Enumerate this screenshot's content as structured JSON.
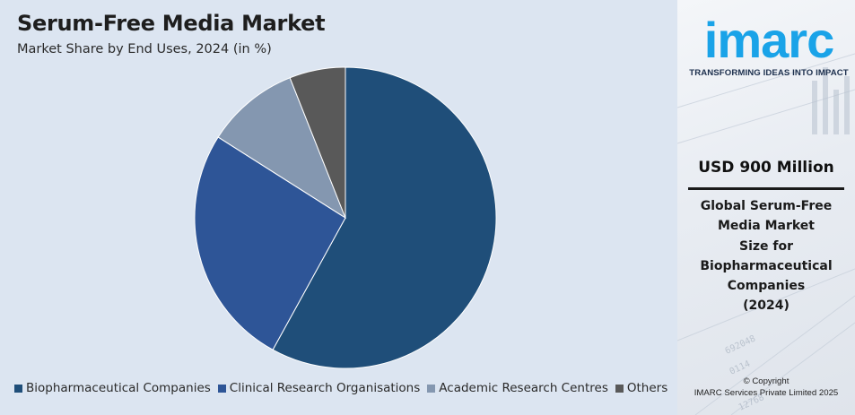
{
  "header": {
    "title": "Serum-Free Media Market",
    "subtitle": "Market Share by End Uses, 2024 (in %)"
  },
  "chart_data": {
    "type": "pie",
    "title": "Serum-Free Media Market",
    "subtitle": "Market Share by End Uses, 2024 (in %)",
    "categories": [
      "Biopharmaceutical Companies",
      "Clinical Research Organisations",
      "Academic Research Centres",
      "Others"
    ],
    "values": [
      58,
      26,
      10,
      6
    ],
    "unit": "%",
    "colors": [
      "#1f4e79",
      "#2e5597",
      "#8497b0",
      "#595959"
    ],
    "start_angle_deg": 0,
    "direction": "clockwise",
    "legend_position": "bottom"
  },
  "legend": {
    "items": [
      {
        "label": "Biopharmaceutical Companies",
        "color": "#1f4e79"
      },
      {
        "label": "Clinical Research Organisations",
        "color": "#2e5597"
      },
      {
        "label": "Academic Research Centres",
        "color": "#8497b0"
      },
      {
        "label": "Others",
        "color": "#595959"
      }
    ]
  },
  "sidebar": {
    "logo_text": "imarc",
    "tagline": "TRANSFORMING IDEAS INTO IMPACT",
    "value": "USD 900 Million",
    "desc_lines": [
      "Global Serum-Free",
      "Media Market",
      "Size for",
      "Biopharmaceutical",
      "Companies",
      "(2024)"
    ],
    "copyright_line1": "© Copyright",
    "copyright_line2": "IMARC Services Private Limited 2025"
  },
  "colors": {
    "panel_bg": "#dce5f1",
    "brand_blue": "#1aa3e8",
    "brand_dark": "#1c2f4d"
  }
}
